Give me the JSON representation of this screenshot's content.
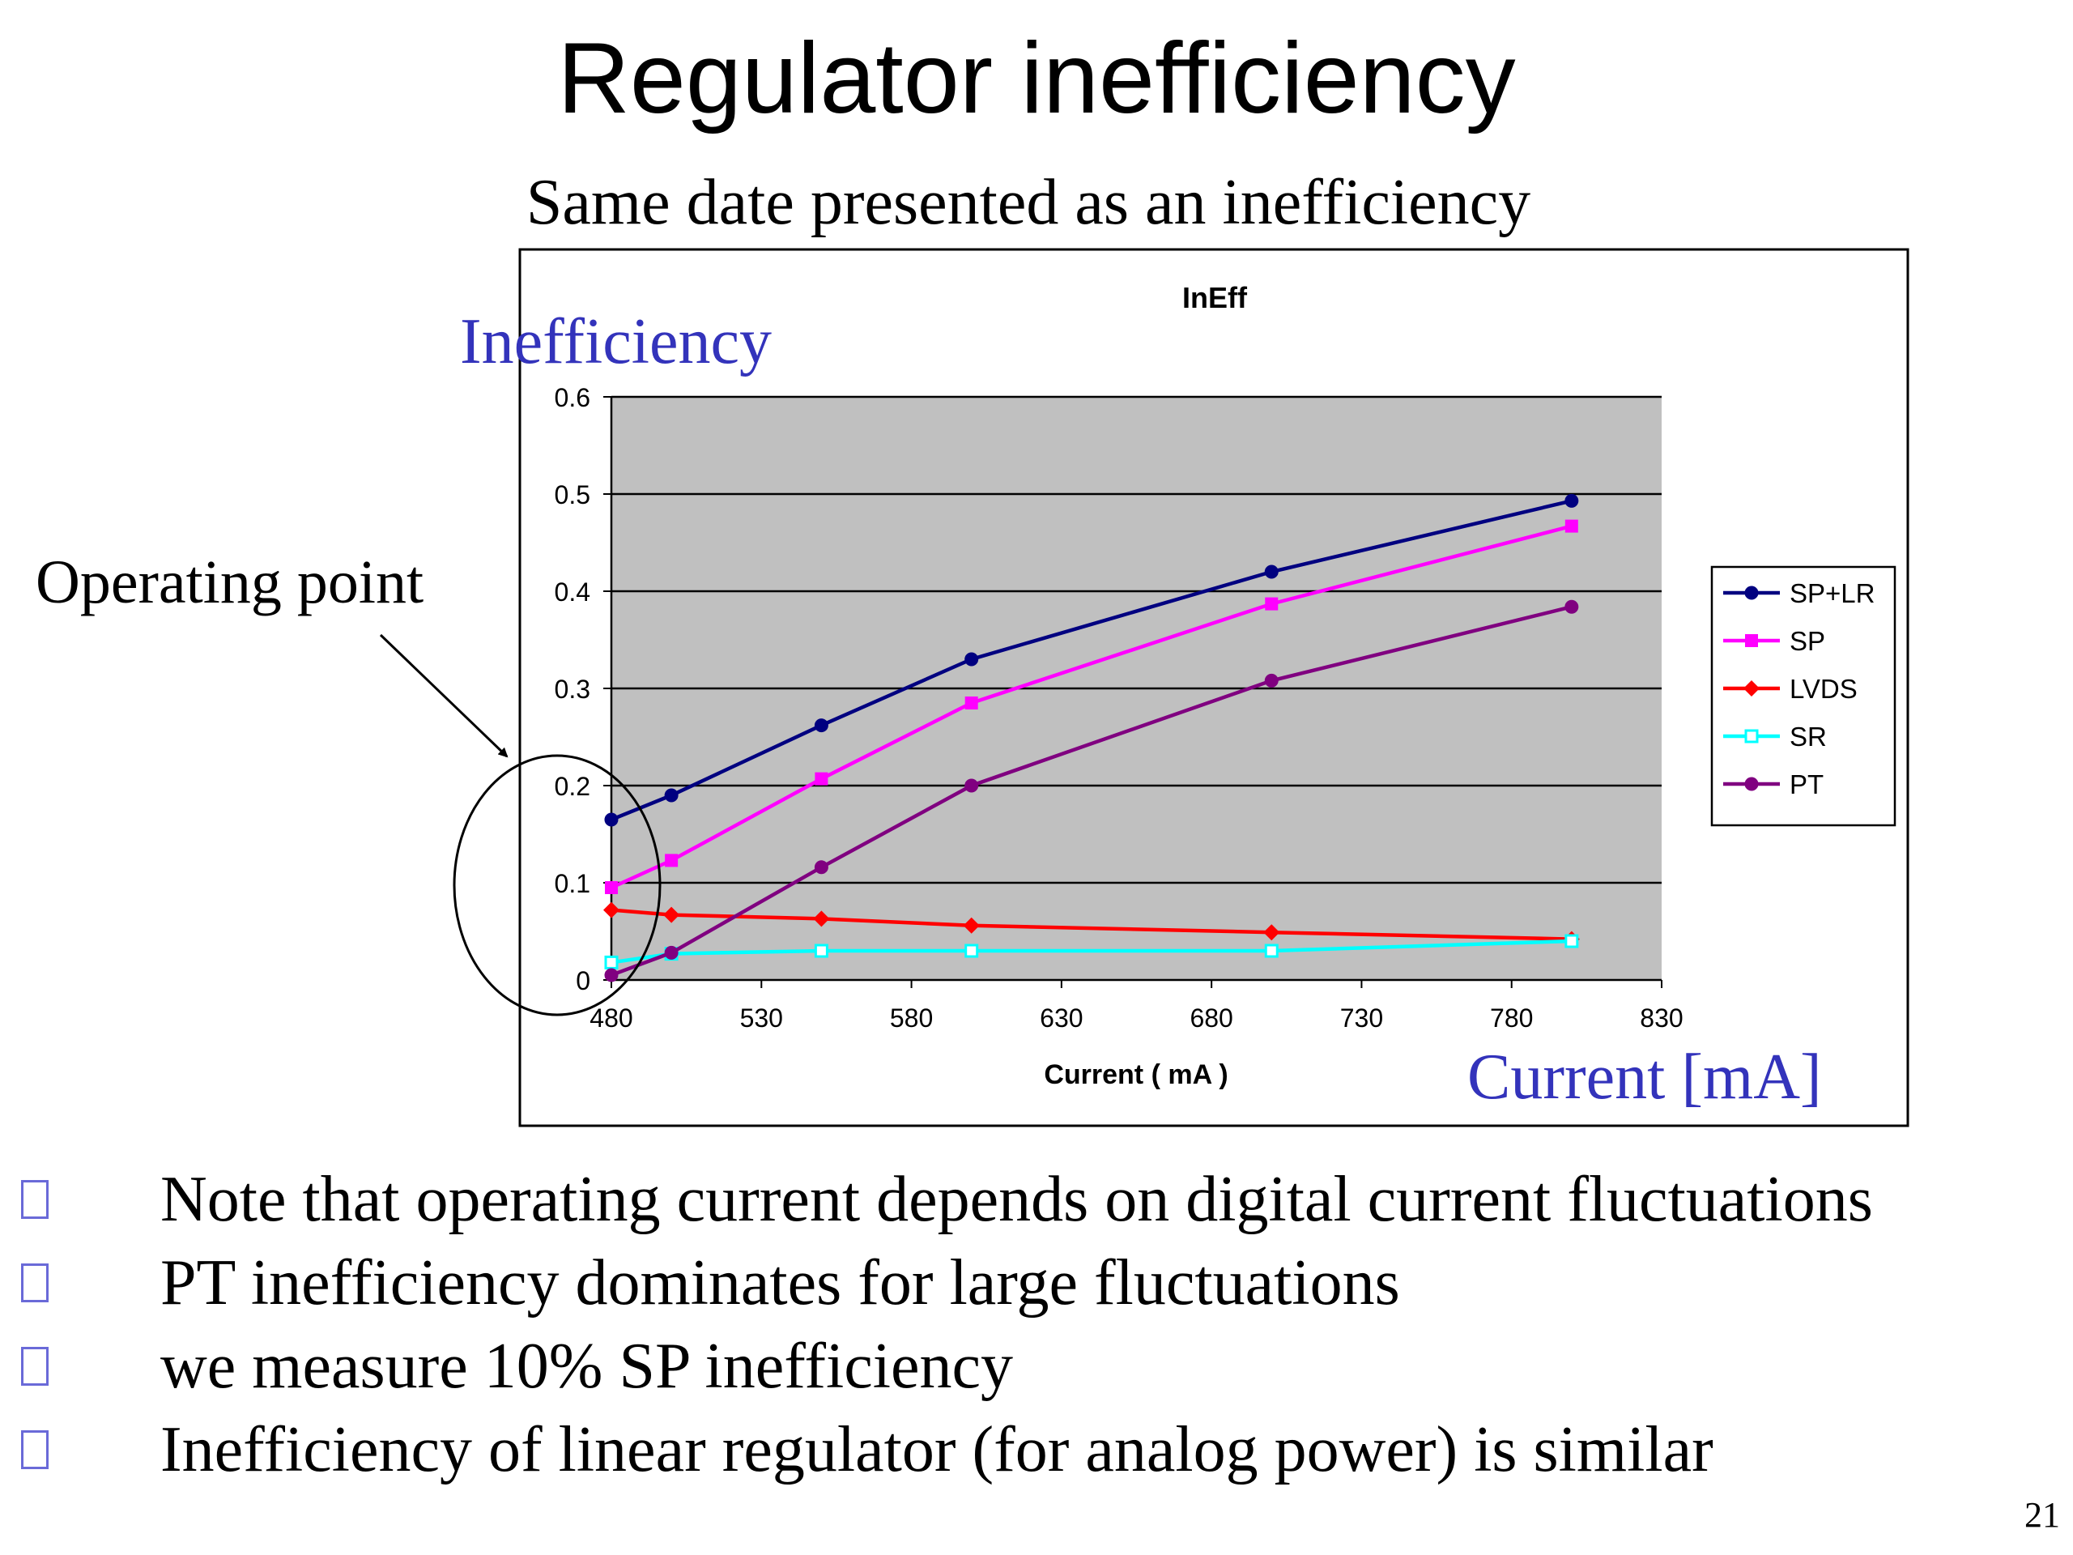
{
  "slide": {
    "title": "Regulator inefficiency",
    "subtitle": "Same date presented as an inefficiency",
    "page_number": "21"
  },
  "annotations": {
    "y_overlay_label": "Inefficiency",
    "x_overlay_label": "Current [mA]",
    "operating_point_label": "Operating point",
    "overlay_color": "#3333bb"
  },
  "bullets": [
    "Note that operating current depends on digital current fluctuations",
    "PT inefficiency dominates for large fluctuations",
    "we measure 10% SP inefficiency",
    "Inefficiency of linear regulator (for analog power) is similar"
  ],
  "chart_data": {
    "type": "line",
    "title": "InEff",
    "xlabel": "Current ( mA )",
    "ylabel": "",
    "xlim": [
      480,
      830
    ],
    "ylim": [
      0,
      0.6
    ],
    "x_ticks": [
      480,
      530,
      580,
      630,
      680,
      730,
      780,
      830
    ],
    "y_ticks": [
      0,
      0.1,
      0.2,
      0.3,
      0.4,
      0.5,
      0.6
    ],
    "y_tick_labels": [
      "0",
      "0.1",
      "0.2",
      "0.3",
      "0.4",
      "0.5",
      "0.6"
    ],
    "grid": "horizontal",
    "plot_background": "#c0c0c0",
    "legend_position": "right",
    "series": [
      {
        "name": "SP+LR",
        "color": "#000080",
        "marker": "circle",
        "x": [
          480,
          500,
          550,
          600,
          700,
          800
        ],
        "y": [
          0.165,
          0.19,
          0.262,
          0.33,
          0.42,
          0.493
        ]
      },
      {
        "name": "SP",
        "color": "#ff00ff",
        "marker": "square",
        "x": [
          480,
          500,
          550,
          600,
          700,
          800
        ],
        "y": [
          0.095,
          0.123,
          0.207,
          0.285,
          0.387,
          0.467
        ]
      },
      {
        "name": "LVDS",
        "color": "#ff0000",
        "marker": "diamond",
        "x": [
          480,
          500,
          550,
          600,
          700,
          800
        ],
        "y": [
          0.072,
          0.067,
          0.063,
          0.056,
          0.049,
          0.042
        ]
      },
      {
        "name": "SR",
        "color": "#00ffff",
        "marker": "open-square",
        "x": [
          480,
          500,
          550,
          600,
          700,
          800
        ],
        "y": [
          0.018,
          0.027,
          0.03,
          0.03,
          0.03,
          0.04
        ]
      },
      {
        "name": "PT",
        "color": "#800080",
        "marker": "circle",
        "x": [
          480,
          500,
          550,
          600,
          700,
          800
        ],
        "y": [
          0.005,
          0.028,
          0.116,
          0.2,
          0.308,
          0.384
        ]
      }
    ]
  }
}
